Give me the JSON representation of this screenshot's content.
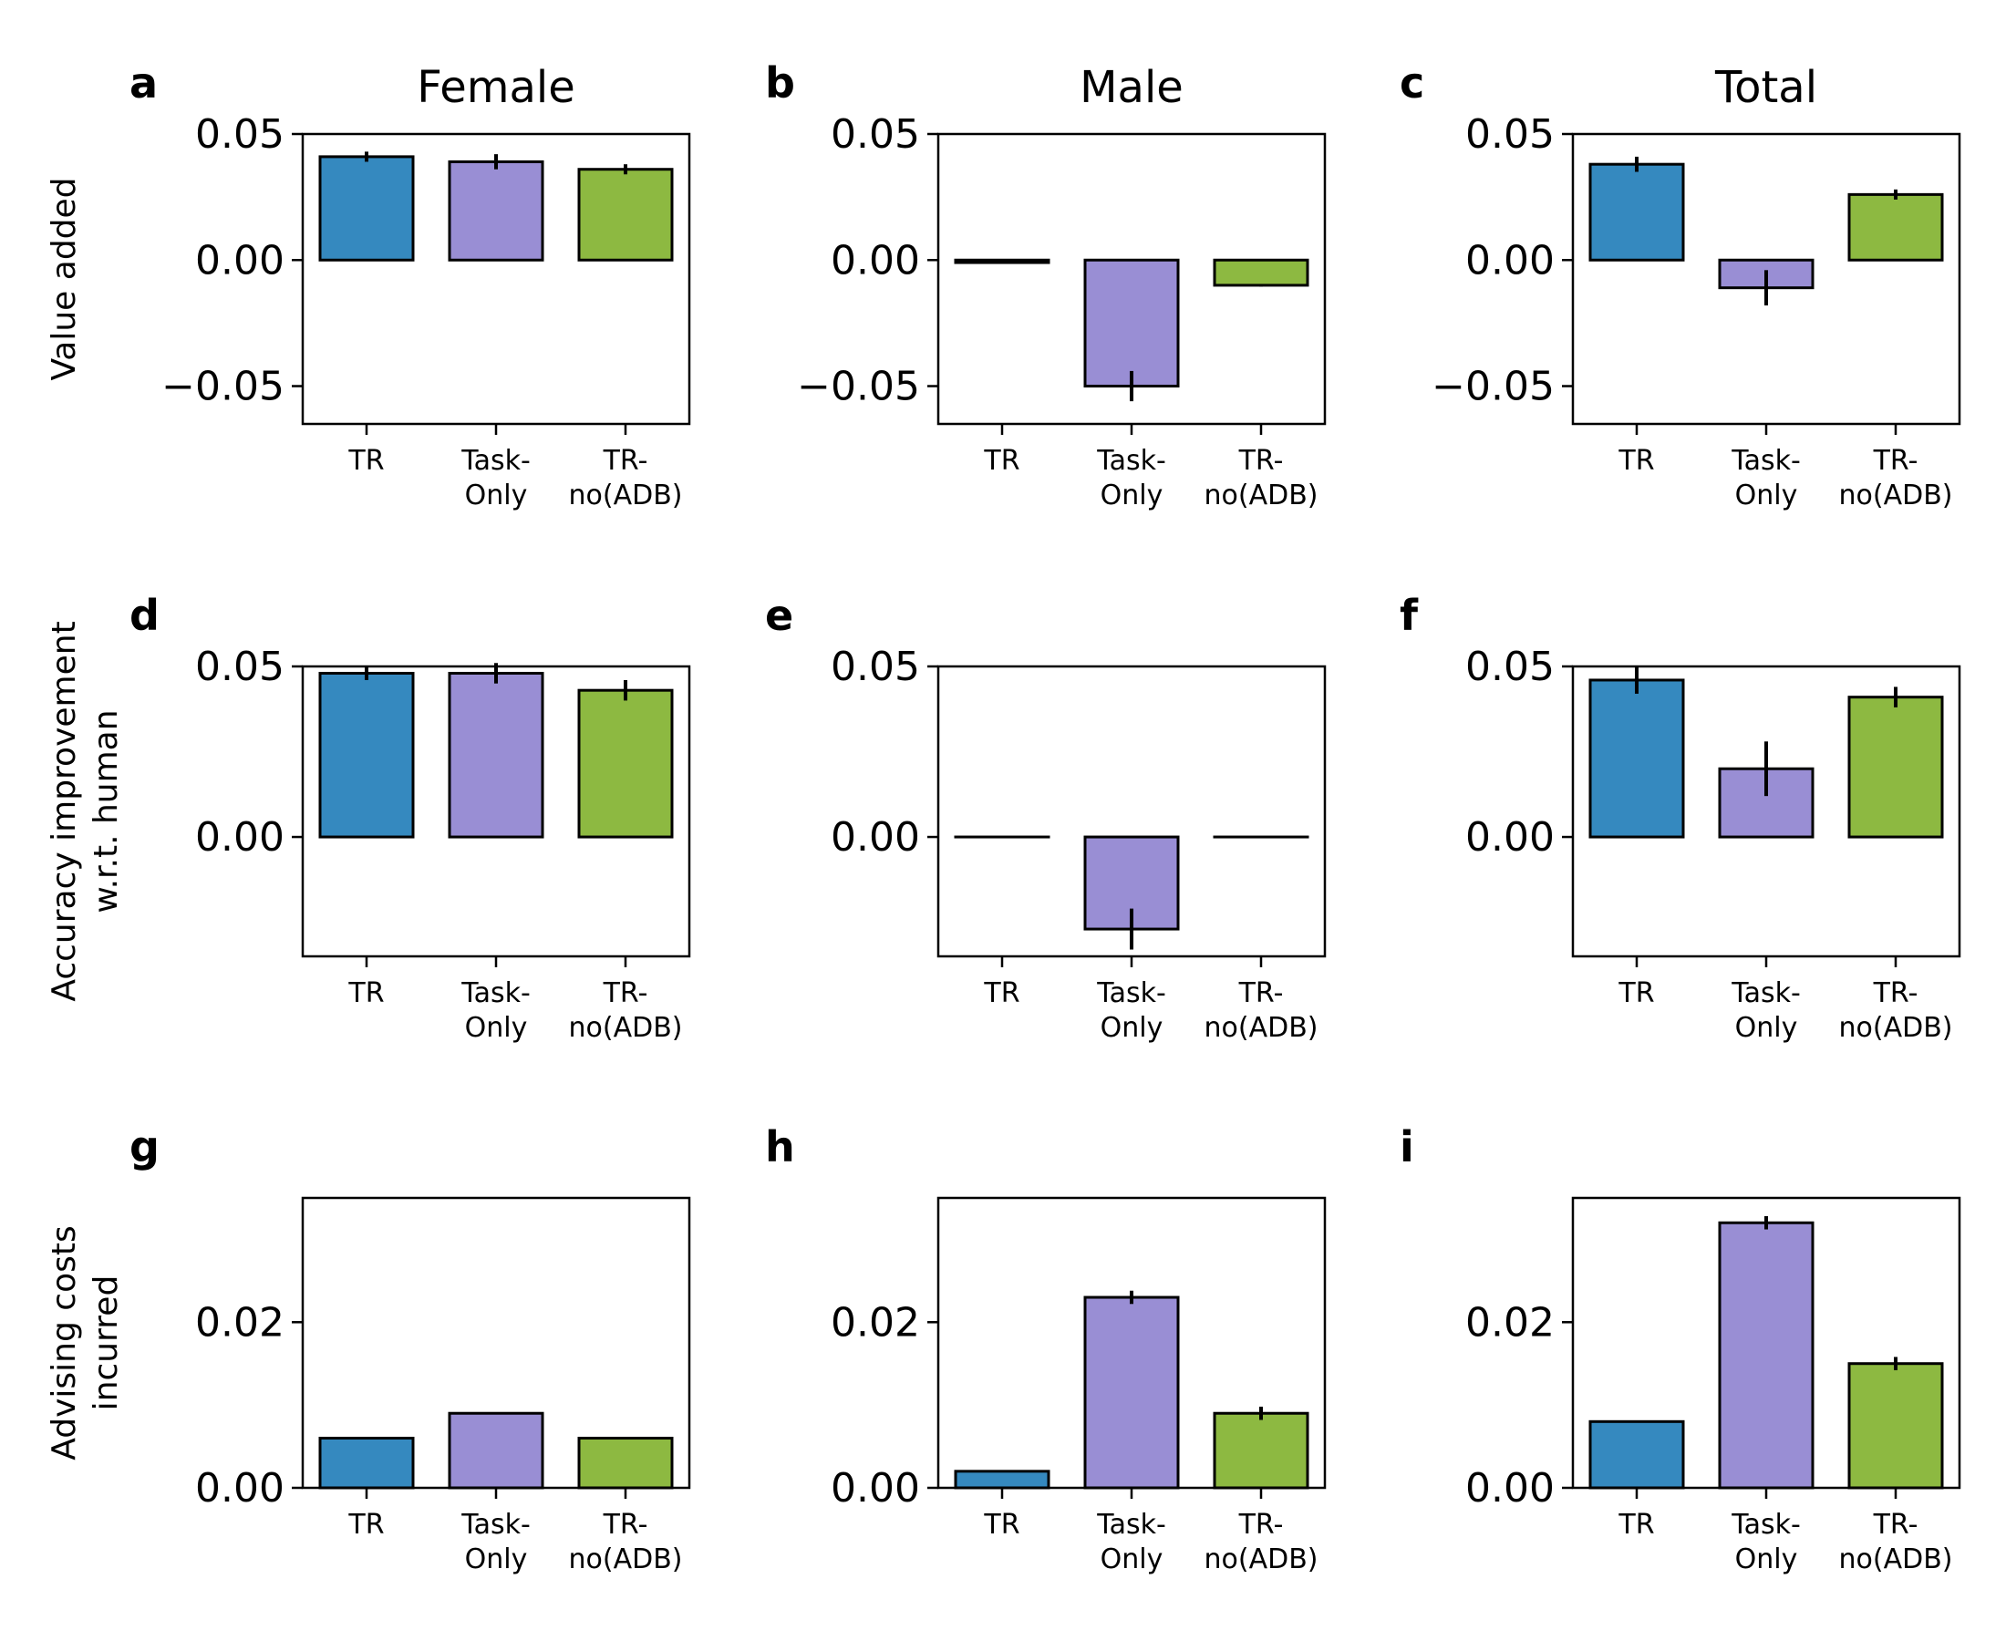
{
  "figure": {
    "column_titles": [
      "Female",
      "Male",
      "Total"
    ],
    "row_ylabels": [
      [
        "Value added"
      ],
      [
        "Accuracy improvement",
        "w.r.t. human"
      ],
      [
        "Advising costs",
        "incurred"
      ]
    ],
    "colors": {
      "TR": "#3589bf",
      "Task-Only": "#998ed4",
      "TR-no(ADB)": "#8db941",
      "edge": "#000000"
    }
  },
  "chart_data": [
    {
      "panel": "a",
      "type": "bar",
      "title": "Female",
      "ylabel": "Value added",
      "categories": [
        "TR",
        "Task-Only",
        "TR-no(ADB)"
      ],
      "category_lines": [
        [
          "TR"
        ],
        [
          "Task-",
          "Only"
        ],
        [
          "TR-",
          "no(ADB)"
        ]
      ],
      "values": [
        0.041,
        0.039,
        0.036
      ],
      "errors": [
        0.002,
        0.003,
        0.002
      ],
      "ylim": [
        -0.065,
        0.05
      ],
      "yticks": [
        0.05,
        0.0,
        -0.05
      ],
      "ytick_labels": [
        "0.05",
        "0.00",
        "−0.05"
      ]
    },
    {
      "panel": "b",
      "type": "bar",
      "title": "Male",
      "ylabel": "",
      "categories": [
        "TR",
        "Task-Only",
        "TR-no(ADB)"
      ],
      "category_lines": [
        [
          "TR"
        ],
        [
          "Task-",
          "Only"
        ],
        [
          "TR-",
          "no(ADB)"
        ]
      ],
      "values": [
        -0.001,
        -0.05,
        -0.01
      ],
      "errors": [
        0.0005,
        0.006,
        0.0005
      ],
      "ylim": [
        -0.065,
        0.05
      ],
      "yticks": [
        0.05,
        0.0,
        -0.05
      ],
      "ytick_labels": [
        "0.05",
        "0.00",
        "−0.05"
      ]
    },
    {
      "panel": "c",
      "type": "bar",
      "title": "Total",
      "ylabel": "",
      "categories": [
        "TR",
        "Task-Only",
        "TR-no(ADB)"
      ],
      "category_lines": [
        [
          "TR"
        ],
        [
          "Task-",
          "Only"
        ],
        [
          "TR-",
          "no(ADB)"
        ]
      ],
      "values": [
        0.038,
        -0.011,
        0.026
      ],
      "errors": [
        0.003,
        0.007,
        0.002
      ],
      "ylim": [
        -0.065,
        0.05
      ],
      "yticks": [
        0.05,
        0.0,
        -0.05
      ],
      "ytick_labels": [
        "0.05",
        "0.00",
        "−0.05"
      ]
    },
    {
      "panel": "d",
      "type": "bar",
      "title": "",
      "ylabel": "Accuracy improvement w.r.t. human",
      "categories": [
        "TR",
        "Task-Only",
        "TR-no(ADB)"
      ],
      "category_lines": [
        [
          "TR"
        ],
        [
          "Task-",
          "Only"
        ],
        [
          "TR-",
          "no(ADB)"
        ]
      ],
      "values": [
        0.048,
        0.048,
        0.043
      ],
      "errors": [
        0.002,
        0.003,
        0.003
      ],
      "ylim": [
        -0.035,
        0.05
      ],
      "yticks": [
        0.05,
        0.0
      ],
      "ytick_labels": [
        "0.05",
        "0.00"
      ]
    },
    {
      "panel": "e",
      "type": "bar",
      "title": "",
      "ylabel": "",
      "categories": [
        "TR",
        "Task-Only",
        "TR-no(ADB)"
      ],
      "category_lines": [
        [
          "TR"
        ],
        [
          "Task-",
          "Only"
        ],
        [
          "TR-",
          "no(ADB)"
        ]
      ],
      "values": [
        0.0,
        -0.027,
        0.0
      ],
      "errors": [
        0.0,
        0.006,
        0.0
      ],
      "ylim": [
        -0.035,
        0.05
      ],
      "yticks": [
        0.05,
        0.0
      ],
      "ytick_labels": [
        "0.05",
        "0.00"
      ]
    },
    {
      "panel": "f",
      "type": "bar",
      "title": "",
      "ylabel": "",
      "categories": [
        "TR",
        "Task-Only",
        "TR-no(ADB)"
      ],
      "category_lines": [
        [
          "TR"
        ],
        [
          "Task-",
          "Only"
        ],
        [
          "TR-",
          "no(ADB)"
        ]
      ],
      "values": [
        0.046,
        0.02,
        0.041
      ],
      "errors": [
        0.004,
        0.008,
        0.003
      ],
      "ylim": [
        -0.035,
        0.05
      ],
      "yticks": [
        0.05,
        0.0
      ],
      "ytick_labels": [
        "0.05",
        "0.00"
      ]
    },
    {
      "panel": "g",
      "type": "bar",
      "title": "",
      "ylabel": "Advising costs incurred",
      "categories": [
        "TR",
        "Task-Only",
        "TR-no(ADB)"
      ],
      "category_lines": [
        [
          "TR"
        ],
        [
          "Task-",
          "Only"
        ],
        [
          "TR-",
          "no(ADB)"
        ]
      ],
      "values": [
        0.006,
        0.009,
        0.006
      ],
      "errors": [
        0.0,
        0.0,
        0.0
      ],
      "ylim": [
        0.0,
        0.035
      ],
      "yticks": [
        0.02,
        0.0
      ],
      "ytick_labels": [
        "0.02",
        "0.00"
      ]
    },
    {
      "panel": "h",
      "type": "bar",
      "title": "",
      "ylabel": "",
      "categories": [
        "TR",
        "Task-Only",
        "TR-no(ADB)"
      ],
      "category_lines": [
        [
          "TR"
        ],
        [
          "Task-",
          "Only"
        ],
        [
          "TR-",
          "no(ADB)"
        ]
      ],
      "values": [
        0.002,
        0.023,
        0.009
      ],
      "errors": [
        0.0,
        0.0008,
        0.0008
      ],
      "ylim": [
        0.0,
        0.035
      ],
      "yticks": [
        0.02,
        0.0
      ],
      "ytick_labels": [
        "0.02",
        "0.00"
      ]
    },
    {
      "panel": "i",
      "type": "bar",
      "title": "",
      "ylabel": "",
      "categories": [
        "TR",
        "Task-Only",
        "TR-no(ADB)"
      ],
      "category_lines": [
        [
          "TR"
        ],
        [
          "Task-",
          "Only"
        ],
        [
          "TR-",
          "no(ADB)"
        ]
      ],
      "values": [
        0.008,
        0.032,
        0.015
      ],
      "errors": [
        0.0,
        0.0008,
        0.0008
      ],
      "ylim": [
        0.0,
        0.035
      ],
      "yticks": [
        0.02,
        0.0
      ],
      "ytick_labels": [
        "0.02",
        "0.00"
      ]
    }
  ]
}
